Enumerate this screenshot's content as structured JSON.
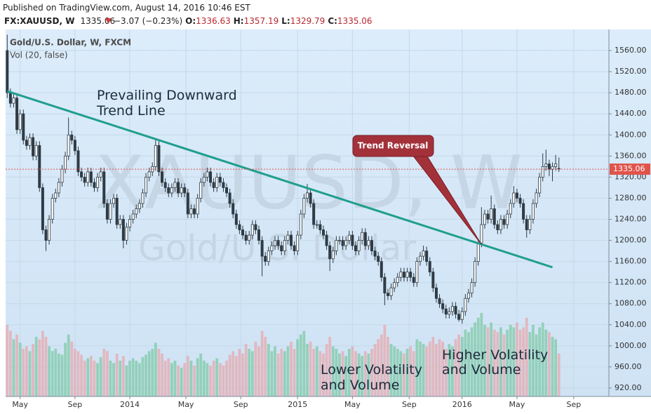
{
  "chart_data": {
    "type": "candlestick",
    "published": "Published on TradingView.com, August 14, 2016 10:46 EST",
    "symbol": "FX:XAUUSD, W",
    "change_label": "−3.07 (−0.23%)",
    "ohlc_labels": [
      "O:",
      "H:",
      "L:",
      "C:"
    ],
    "title": "Gold/U.S. Dollar, W, FXCM",
    "indicator": "Vol (20, false)",
    "watermark": [
      "XAUUSD, W",
      "Gold/U.S. Dollar"
    ],
    "annotations": {
      "trend_text": [
        "Prevailing Downward",
        "Trend Line"
      ],
      "callout": "Trend Reversal",
      "lower": [
        "Lower Volatility",
        "and Volume"
      ],
      "higher": [
        "Higher Volatility",
        "and Volume"
      ]
    },
    "open": [
      1560,
      1480,
      1460,
      1470,
      1410,
      1440,
      1390,
      1380,
      1395,
      1360,
      1380,
      1300,
      1220,
      1200,
      1240,
      1280,
      1290,
      1310,
      1335,
      1360,
      1400,
      1390,
      1370,
      1330,
      1320,
      1310,
      1330,
      1310,
      1300,
      1320,
      1330,
      1270,
      1240,
      1270,
      1280,
      1230,
      1240,
      1200,
      1225,
      1240,
      1250,
      1260,
      1270,
      1290,
      1320,
      1330,
      1340,
      1380,
      1330,
      1310,
      1300,
      1290,
      1300,
      1310,
      1290,
      1300,
      1290,
      1250,
      1260,
      1250,
      1280,
      1310,
      1320,
      1330,
      1310,
      1300,
      1320,
      1310,
      1300,
      1290,
      1270,
      1250,
      1230,
      1220,
      1210,
      1200,
      1210,
      1230,
      1220,
      1200,
      1170,
      1160,
      1180,
      1190,
      1200,
      1190,
      1180,
      1200,
      1210,
      1190,
      1180,
      1210,
      1250,
      1280,
      1290,
      1270,
      1230,
      1230,
      1220,
      1210,
      1190,
      1165,
      1180,
      1200,
      1200,
      1190,
      1200,
      1210,
      1190,
      1180,
      1200,
      1215,
      1190,
      1200,
      1180,
      1170,
      1160,
      1130,
      1100,
      1095,
      1110,
      1120,
      1130,
      1140,
      1130,
      1140,
      1130,
      1120,
      1160,
      1170,
      1180,
      1160,
      1140,
      1110,
      1090,
      1080,
      1070,
      1060,
      1065,
      1075,
      1060,
      1050,
      1065,
      1090,
      1100,
      1120,
      1160,
      1195,
      1230,
      1250,
      1240,
      1260,
      1230,
      1220,
      1240,
      1230,
      1250,
      1270,
      1290,
      1280,
      1270,
      1240,
      1220,
      1240,
      1270,
      1290,
      1320,
      1340,
      1345,
      1335,
      1340,
      1336.63
    ],
    "high": [
      1590,
      1488,
      1478,
      1478,
      1448,
      1448,
      1398,
      1403,
      1403,
      1388,
      1388,
      1308,
      1228,
      1248,
      1288,
      1298,
      1318,
      1343,
      1368,
      1433,
      1408,
      1398,
      1378,
      1338,
      1328,
      1338,
      1338,
      1318,
      1328,
      1338,
      1338,
      1278,
      1278,
      1288,
      1288,
      1248,
      1248,
      1233,
      1248,
      1258,
      1268,
      1278,
      1298,
      1328,
      1338,
      1348,
      1392,
      1388,
      1338,
      1318,
      1308,
      1308,
      1318,
      1318,
      1308,
      1308,
      1298,
      1268,
      1268,
      1288,
      1318,
      1328,
      1338,
      1338,
      1318,
      1328,
      1328,
      1318,
      1308,
      1298,
      1278,
      1258,
      1238,
      1228,
      1218,
      1218,
      1238,
      1238,
      1228,
      1208,
      1178,
      1188,
      1198,
      1208,
      1208,
      1198,
      1208,
      1218,
      1218,
      1198,
      1218,
      1258,
      1288,
      1307,
      1298,
      1278,
      1238,
      1238,
      1228,
      1218,
      1198,
      1188,
      1208,
      1208,
      1208,
      1208,
      1218,
      1218,
      1198,
      1208,
      1223,
      1223,
      1208,
      1208,
      1188,
      1178,
      1168,
      1138,
      1108,
      1118,
      1128,
      1138,
      1148,
      1148,
      1148,
      1148,
      1138,
      1168,
      1178,
      1190,
      1188,
      1168,
      1148,
      1118,
      1098,
      1088,
      1078,
      1073,
      1083,
      1083,
      1068,
      1073,
      1098,
      1108,
      1128,
      1168,
      1203,
      1263,
      1258,
      1258,
      1285,
      1268,
      1238,
      1248,
      1248,
      1258,
      1278,
      1303,
      1298,
      1288,
      1278,
      1248,
      1248,
      1278,
      1298,
      1328,
      1365,
      1372,
      1353,
      1348,
      1362,
      1357.19
    ],
    "low": [
      1470,
      1452,
      1452,
      1402,
      1402,
      1382,
      1372,
      1372,
      1352,
      1352,
      1292,
      1212,
      1180,
      1192,
      1232,
      1272,
      1282,
      1302,
      1327,
      1352,
      1382,
      1362,
      1322,
      1312,
      1302,
      1302,
      1302,
      1292,
      1292,
      1312,
      1262,
      1232,
      1232,
      1262,
      1222,
      1222,
      1185,
      1192,
      1217,
      1232,
      1242,
      1252,
      1262,
      1282,
      1312,
      1322,
      1332,
      1322,
      1302,
      1292,
      1282,
      1282,
      1292,
      1282,
      1282,
      1282,
      1242,
      1242,
      1242,
      1242,
      1272,
      1302,
      1312,
      1302,
      1292,
      1292,
      1302,
      1292,
      1282,
      1262,
      1242,
      1222,
      1212,
      1202,
      1192,
      1192,
      1202,
      1212,
      1192,
      1132,
      1152,
      1152,
      1172,
      1182,
      1182,
      1172,
      1172,
      1192,
      1182,
      1172,
      1172,
      1202,
      1242,
      1272,
      1262,
      1222,
      1222,
      1212,
      1202,
      1182,
      1142,
      1157,
      1172,
      1192,
      1182,
      1182,
      1192,
      1182,
      1172,
      1172,
      1192,
      1182,
      1182,
      1172,
      1162,
      1152,
      1122,
      1077,
      1087,
      1087,
      1102,
      1112,
      1122,
      1122,
      1122,
      1122,
      1112,
      1112,
      1152,
      1162,
      1152,
      1132,
      1102,
      1082,
      1072,
      1062,
      1052,
      1052,
      1057,
      1052,
      1046,
      1042,
      1057,
      1082,
      1092,
      1112,
      1152,
      1187,
      1222,
      1232,
      1232,
      1222,
      1212,
      1212,
      1222,
      1222,
      1242,
      1262,
      1272,
      1262,
      1232,
      1205,
      1212,
      1232,
      1262,
      1282,
      1312,
      1332,
      1322,
      1312,
      1332,
      1329.79
    ],
    "close": [
      1480,
      1460,
      1470,
      1410,
      1440,
      1390,
      1380,
      1395,
      1360,
      1380,
      1300,
      1220,
      1200,
      1240,
      1280,
      1290,
      1310,
      1335,
      1360,
      1400,
      1390,
      1370,
      1330,
      1320,
      1310,
      1330,
      1310,
      1300,
      1320,
      1330,
      1270,
      1240,
      1270,
      1280,
      1230,
      1240,
      1200,
      1225,
      1240,
      1250,
      1260,
      1270,
      1290,
      1320,
      1330,
      1340,
      1380,
      1330,
      1310,
      1300,
      1290,
      1300,
      1310,
      1290,
      1300,
      1290,
      1250,
      1260,
      1250,
      1280,
      1310,
      1320,
      1330,
      1310,
      1300,
      1320,
      1310,
      1300,
      1290,
      1270,
      1250,
      1230,
      1220,
      1210,
      1200,
      1210,
      1230,
      1220,
      1200,
      1170,
      1160,
      1180,
      1190,
      1200,
      1190,
      1180,
      1200,
      1210,
      1190,
      1180,
      1210,
      1250,
      1280,
      1290,
      1270,
      1230,
      1230,
      1220,
      1210,
      1190,
      1165,
      1180,
      1200,
      1200,
      1190,
      1200,
      1210,
      1190,
      1180,
      1200,
      1215,
      1190,
      1200,
      1180,
      1170,
      1160,
      1130,
      1100,
      1095,
      1110,
      1120,
      1130,
      1140,
      1130,
      1140,
      1130,
      1120,
      1160,
      1170,
      1180,
      1160,
      1140,
      1110,
      1090,
      1080,
      1070,
      1060,
      1065,
      1075,
      1060,
      1050,
      1065,
      1090,
      1100,
      1120,
      1160,
      1195,
      1230,
      1250,
      1240,
      1260,
      1230,
      1220,
      1240,
      1230,
      1250,
      1270,
      1290,
      1280,
      1270,
      1240,
      1220,
      1240,
      1270,
      1290,
      1320,
      1340,
      1345,
      1335,
      1340,
      1345,
      1335.06
    ],
    "volume": [
      60,
      55,
      48,
      52,
      45,
      40,
      42,
      38,
      44,
      50,
      48,
      55,
      50,
      42,
      38,
      40,
      36,
      35,
      45,
      52,
      46,
      40,
      38,
      35,
      30,
      32,
      34,
      30,
      28,
      33,
      40,
      38,
      30,
      28,
      36,
      30,
      34,
      26,
      30,
      32,
      30,
      28,
      33,
      35,
      38,
      40,
      45,
      40,
      36,
      30,
      32,
      28,
      30,
      26,
      24,
      28,
      34,
      30,
      26,
      32,
      36,
      30,
      28,
      26,
      30,
      32,
      28,
      26,
      30,
      35,
      38,
      34,
      40,
      36,
      44,
      40,
      38,
      46,
      42,
      55,
      50,
      44,
      38,
      42,
      36,
      40,
      38,
      42,
      46,
      40,
      48,
      52,
      55,
      44,
      46,
      40,
      42,
      38,
      36,
      44,
      50,
      42,
      40,
      36,
      38,
      34,
      40,
      42,
      38,
      36,
      34,
      38,
      36,
      40,
      44,
      48,
      52,
      60,
      50,
      44,
      42,
      40,
      38,
      36,
      40,
      42,
      38,
      48,
      46,
      44,
      42,
      46,
      50,
      44,
      48,
      46,
      40,
      44,
      42,
      48,
      52,
      50,
      56,
      54,
      58,
      62,
      66,
      70,
      60,
      58,
      62,
      56,
      54,
      58,
      52,
      56,
      60,
      58,
      62,
      56,
      58,
      66,
      54,
      60,
      52,
      58,
      62,
      56,
      54,
      50,
      48,
      36
    ],
    "up_color": "#ffffff",
    "down_color": "#2e3b45",
    "wick_color": "#2e3b45",
    "volume_up_color": "#7fc9a5",
    "volume_down_color": "#e7a9ae",
    "last_price_color": "#e0534a",
    "trend_line": {
      "x": [
        0,
        169
      ],
      "y": [
        1483,
        1149
      ],
      "color": "#1f9e8e"
    },
    "grid": true,
    "xlim": [
      -0.5,
      186.5
    ],
    "ylim": [
      904,
      1600
    ],
    "xticks": [
      {
        "value": 4,
        "label": "May"
      },
      {
        "value": 21,
        "label": "Sep"
      },
      {
        "value": 38,
        "label": "2014"
      },
      {
        "value": 55.4,
        "label": "May"
      },
      {
        "value": 72.4,
        "label": "Sep"
      },
      {
        "value": 90,
        "label": "2015"
      },
      {
        "value": 107,
        "label": "May"
      },
      {
        "value": 124.6,
        "label": "Sep"
      },
      {
        "value": 141,
        "label": "2016"
      },
      {
        "value": 158,
        "label": "May"
      },
      {
        "value": 175.6,
        "label": "Sep"
      }
    ],
    "yticks": [
      {
        "value": 920,
        "label": "920.00"
      },
      {
        "value": 960,
        "label": "960.00"
      },
      {
        "value": 1000,
        "label": "1000.00"
      },
      {
        "value": 1040,
        "label": "1040.00"
      },
      {
        "value": 1080,
        "label": "1080.00"
      },
      {
        "value": 1120,
        "label": "1120.00"
      },
      {
        "value": 1160,
        "label": "1160.00"
      },
      {
        "value": 1200,
        "label": "1200.00"
      },
      {
        "value": 1240,
        "label": "1240.00"
      },
      {
        "value": 1280,
        "label": "1280.00"
      },
      {
        "value": 1320,
        "label": "1320.00"
      },
      {
        "value": 1360,
        "label": "1360.00"
      },
      {
        "value": 1400,
        "label": "1400.00"
      },
      {
        "value": 1440,
        "label": "1440.00"
      },
      {
        "value": 1480,
        "label": "1480.00"
      },
      {
        "value": 1520,
        "label": "1520.00"
      },
      {
        "value": 1560,
        "label": "1560.00"
      }
    ]
  }
}
